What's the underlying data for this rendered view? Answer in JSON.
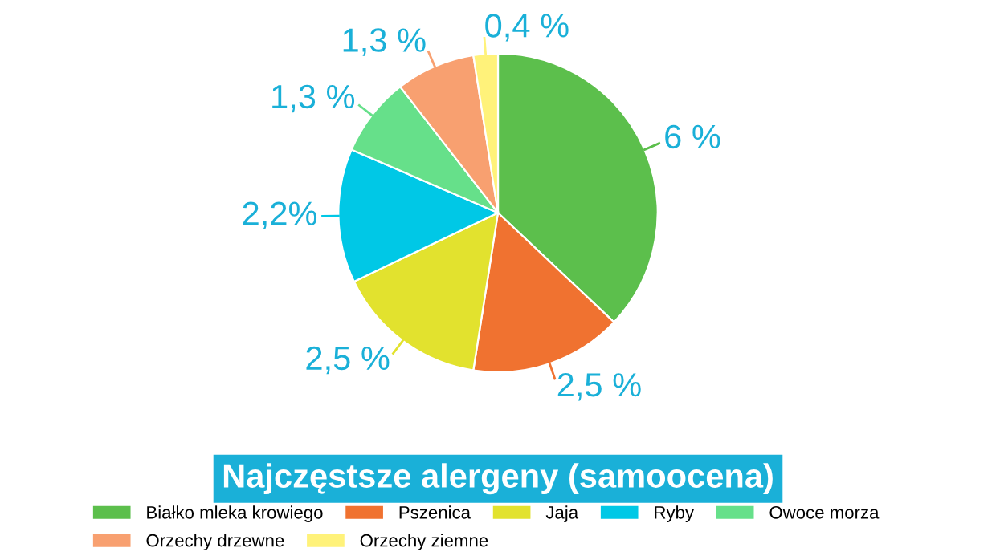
{
  "chart_data": {
    "type": "pie",
    "title": "Najczęstsze alergeny (samoocena)",
    "categories": [
      "Białko mleka krowiego",
      "Pszenica",
      "Jaja",
      "Ryby",
      "Owoce morza",
      "Orzechy drzewne",
      "Orzechy ziemne"
    ],
    "values": [
      6,
      2.5,
      2.5,
      2.2,
      1.3,
      1.3,
      0.4
    ],
    "value_labels": [
      "6 %",
      "2,5 %",
      "2,5 %",
      "2,2%",
      "1,3 %",
      "1,3 %",
      "0,4 %"
    ],
    "colors": [
      "#5cbf4c",
      "#f07230",
      "#e2e22e",
      "#00c8e6",
      "#66e08a",
      "#f8a070",
      "#fff27a"
    ],
    "legend": "bottom"
  }
}
